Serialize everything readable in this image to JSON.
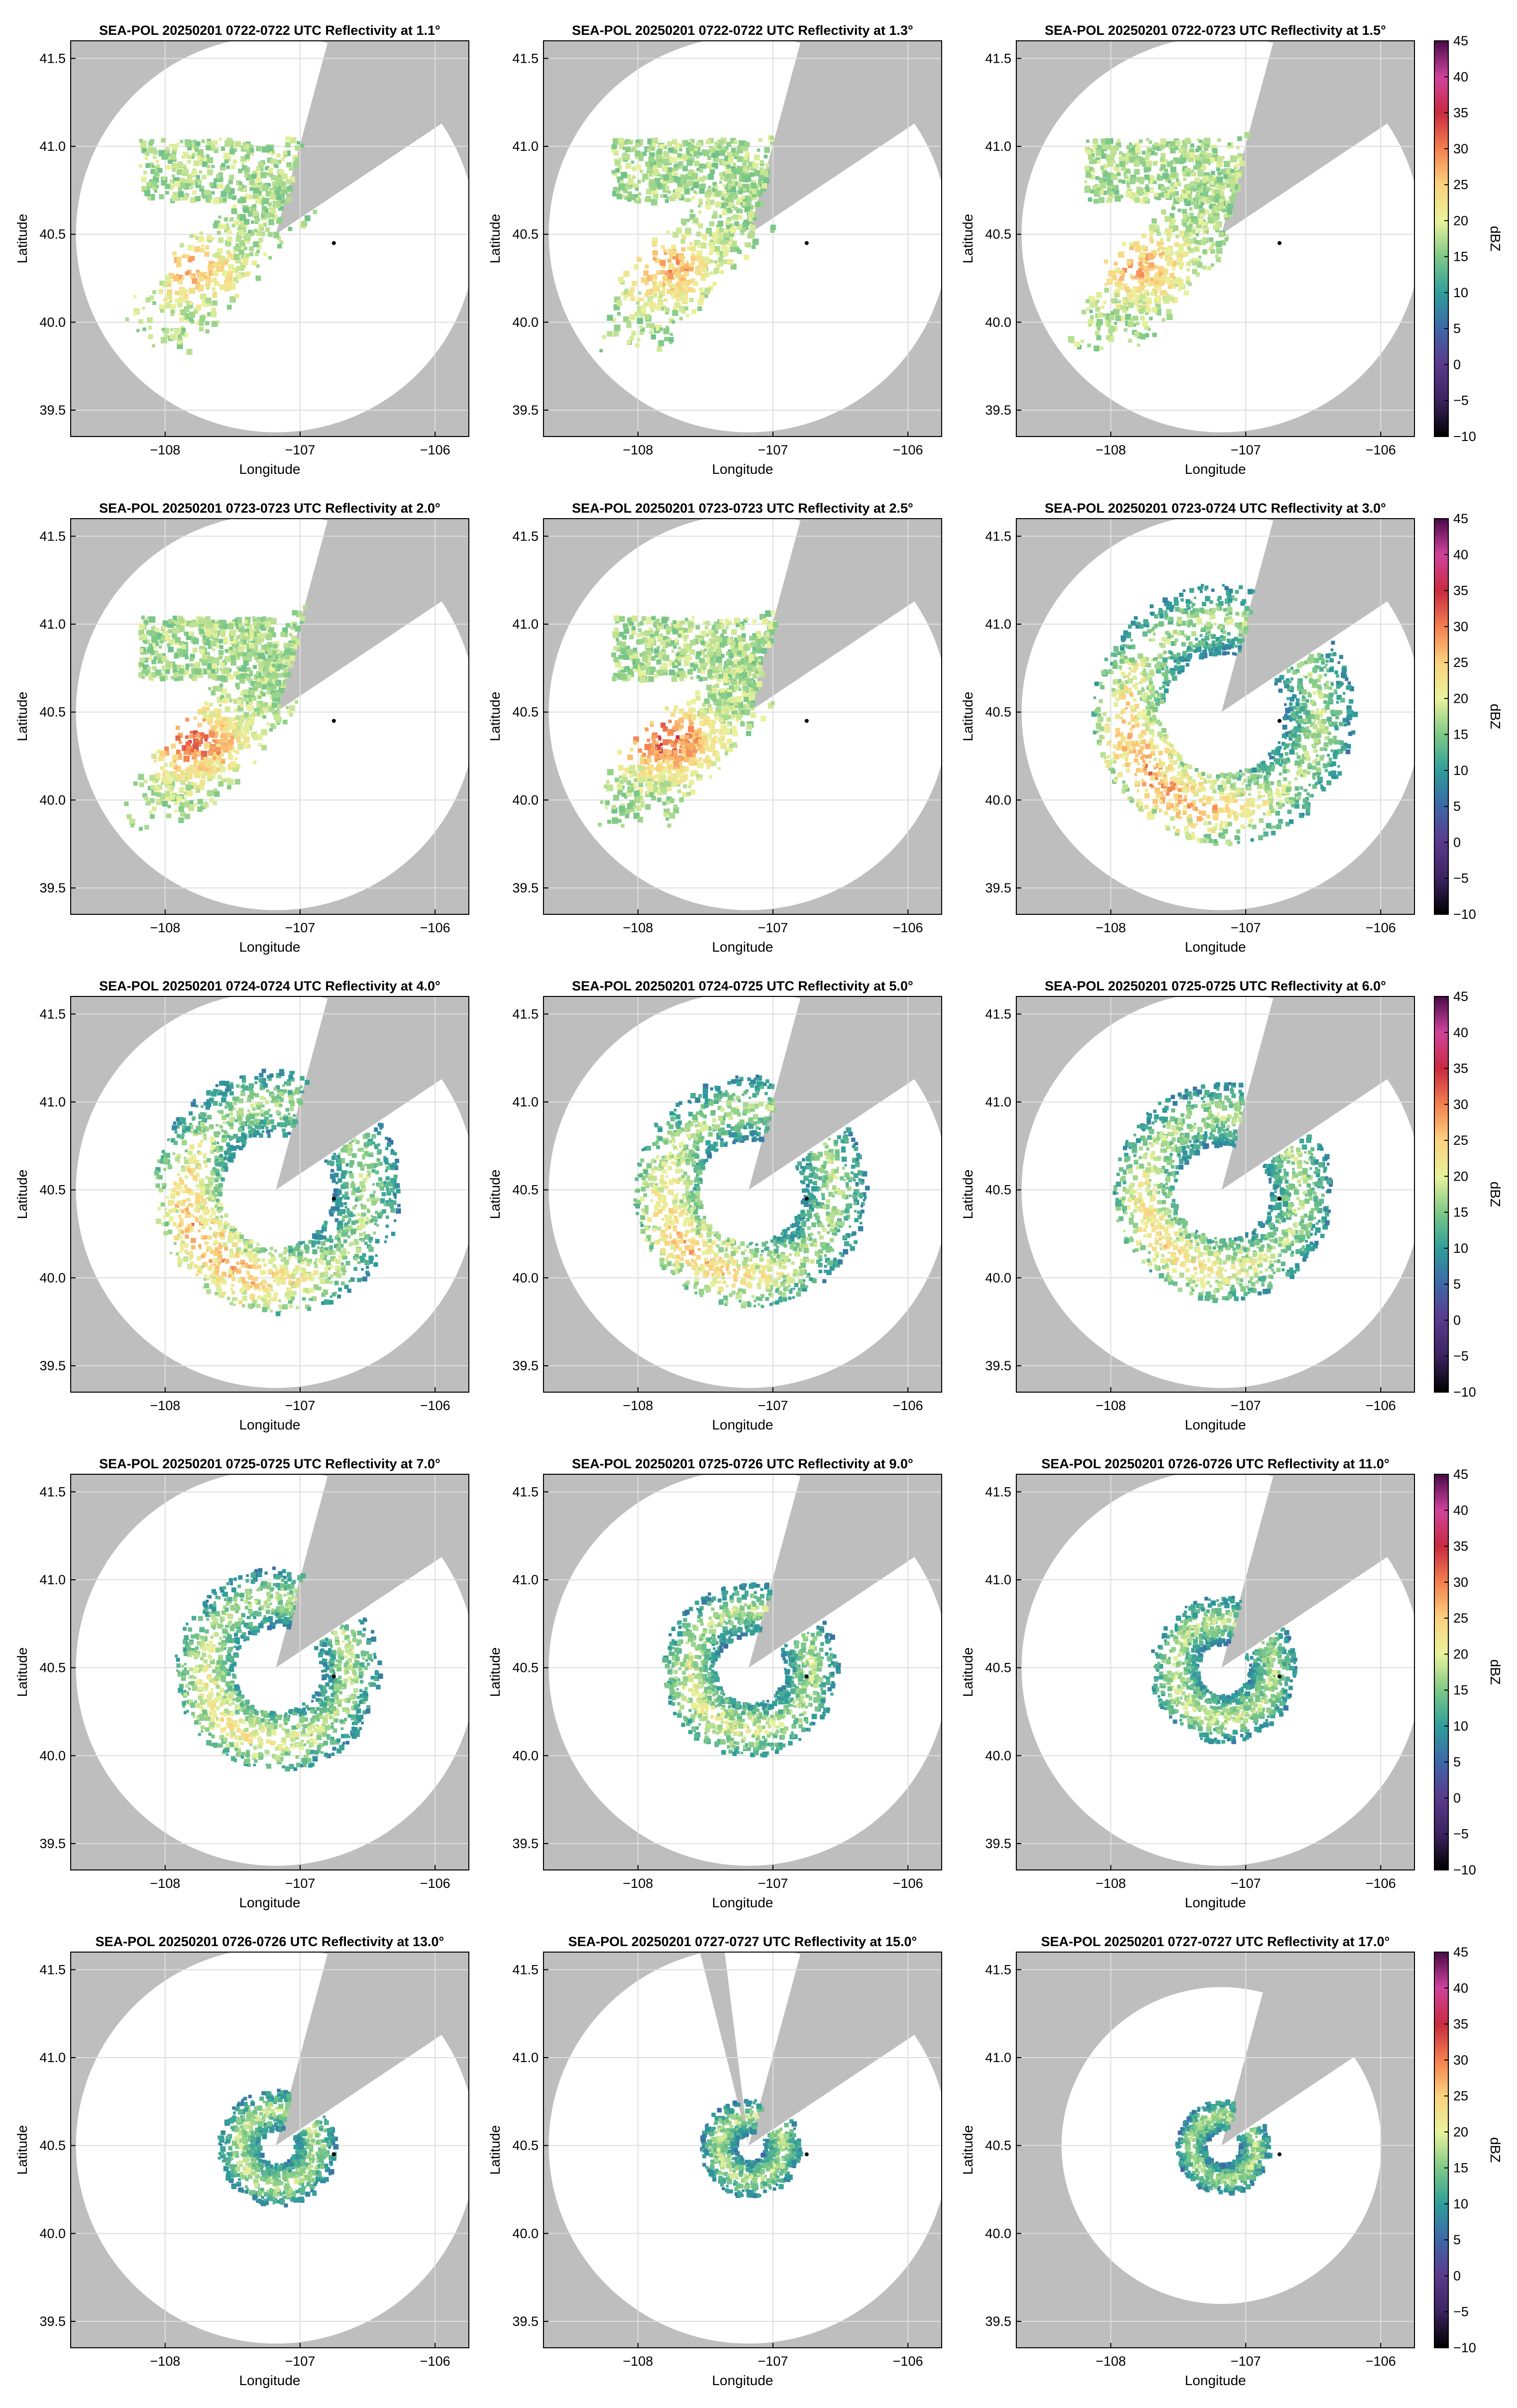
{
  "figure": {
    "background": "#ffffff",
    "mask_color": "#bebebe",
    "grid_color": "#dedede",
    "radar_marker_color": "#000000"
  },
  "chart_data": {
    "type": "heatmap",
    "layout": {
      "rows": 5,
      "cols": 3
    },
    "xlabel": "Longitude",
    "ylabel": "Latitude",
    "xlim": [
      -108.7,
      -105.75
    ],
    "ylim": [
      39.35,
      41.6
    ],
    "xticks": [
      -108,
      -107,
      -106
    ],
    "xtick_labels": [
      "−108",
      "−107",
      "−106"
    ],
    "yticks": [
      39.5,
      40.0,
      40.5,
      41.0,
      41.5
    ],
    "ytick_labels": [
      "39.5",
      "40.0",
      "40.5",
      "41.0",
      "41.5"
    ],
    "grid": true,
    "radar_site": {
      "lon": -107.18,
      "lat": 40.5
    },
    "marker": {
      "lon": -106.75,
      "lat": 40.45
    },
    "colorbar": {
      "label": "dBZ",
      "range": [
        -10,
        45
      ],
      "ticks": [
        -10,
        -5,
        0,
        5,
        10,
        15,
        20,
        25,
        30,
        35,
        40,
        45
      ],
      "tick_labels": [
        "−10",
        "−5",
        "0",
        "5",
        "10",
        "15",
        "20",
        "25",
        "30",
        "35",
        "40",
        "45"
      ],
      "colormap": [
        [
          -10,
          "#000000"
        ],
        [
          -5,
          "#3b2360"
        ],
        [
          0,
          "#5b3a8c"
        ],
        [
          5,
          "#3d67a8"
        ],
        [
          10,
          "#2f9e9a"
        ],
        [
          15,
          "#7fc987"
        ],
        [
          20,
          "#e9f29c"
        ],
        [
          25,
          "#fbd27e"
        ],
        [
          30,
          "#f3804f"
        ],
        [
          35,
          "#c92a3f"
        ],
        [
          40,
          "#d0439c"
        ],
        [
          45,
          "#4a0a4a"
        ]
      ]
    },
    "panels": [
      {
        "title": "SEA-POL 20250201 0722-0722 UTC Reflectivity at 1.1°",
        "elevation_deg": 1.1,
        "max_range_km": 125,
        "beam_blockage_deg": [
          [
            15,
            56
          ]
        ],
        "echo_level": 0.1,
        "core_dbz": 22,
        "colorbar": false
      },
      {
        "title": "SEA-POL 20250201 0722-0722 UTC Reflectivity at 1.3°",
        "elevation_deg": 1.3,
        "max_range_km": 125,
        "beam_blockage_deg": [
          [
            15,
            56
          ]
        ],
        "echo_level": 0.22,
        "core_dbz": 24,
        "colorbar": false
      },
      {
        "title": "SEA-POL 20250201 0722-0723 UTC Reflectivity at 1.5°",
        "elevation_deg": 1.5,
        "max_range_km": 125,
        "beam_blockage_deg": [
          [
            15,
            56
          ]
        ],
        "echo_level": 0.3,
        "core_dbz": 24,
        "colorbar": true
      },
      {
        "title": "SEA-POL 20250201 0723-0723 UTC Reflectivity at 2.0°",
        "elevation_deg": 2.0,
        "max_range_km": 125,
        "beam_blockage_deg": [
          [
            15,
            56
          ]
        ],
        "echo_level": 0.4,
        "core_dbz": 28,
        "colorbar": false
      },
      {
        "title": "SEA-POL 20250201 0723-0723 UTC Reflectivity at 2.5°",
        "elevation_deg": 2.5,
        "max_range_km": 125,
        "beam_blockage_deg": [
          [
            15,
            56
          ]
        ],
        "echo_level": 0.45,
        "core_dbz": 29,
        "colorbar": false
      },
      {
        "title": "SEA-POL 20250201 0723-0724 UTC Reflectivity at 3.0°",
        "elevation_deg": 3.0,
        "max_range_km": 125,
        "beam_blockage_deg": [
          [
            15,
            56
          ]
        ],
        "echo_level": 0.5,
        "core_dbz": 29,
        "colorbar": true
      },
      {
        "title": "SEA-POL 20250201 0724-0724 UTC Reflectivity at 4.0°",
        "elevation_deg": 4.0,
        "max_range_km": 125,
        "beam_blockage_deg": [
          [
            15,
            56
          ]
        ],
        "echo_level": 0.55,
        "core_dbz": 28,
        "colorbar": false
      },
      {
        "title": "SEA-POL 20250201 0724-0725 UTC Reflectivity at 5.0°",
        "elevation_deg": 5.0,
        "max_range_km": 125,
        "beam_blockage_deg": [
          [
            15,
            56
          ]
        ],
        "echo_level": 0.55,
        "core_dbz": 26,
        "colorbar": false
      },
      {
        "title": "SEA-POL 20250201 0725-0725 UTC Reflectivity at 6.0°",
        "elevation_deg": 6.0,
        "max_range_km": 125,
        "beam_blockage_deg": [
          [
            15,
            56
          ]
        ],
        "echo_level": 0.55,
        "core_dbz": 24,
        "colorbar": true
      },
      {
        "title": "SEA-POL 20250201 0725-0725 UTC Reflectivity at 7.0°",
        "elevation_deg": 7.0,
        "max_range_km": 125,
        "beam_blockage_deg": [
          [
            15,
            56
          ]
        ],
        "echo_level": 0.55,
        "core_dbz": 22,
        "colorbar": false
      },
      {
        "title": "SEA-POL 20250201 0725-0726 UTC Reflectivity at 9.0°",
        "elevation_deg": 9.0,
        "max_range_km": 125,
        "beam_blockage_deg": [
          [
            15,
            56
          ]
        ],
        "echo_level": 0.55,
        "core_dbz": 20,
        "colorbar": false
      },
      {
        "title": "SEA-POL 20250201 0726-0726 UTC Reflectivity at 11.0°",
        "elevation_deg": 11.0,
        "max_range_km": 125,
        "beam_blockage_deg": [
          [
            15,
            56
          ]
        ],
        "echo_level": 0.55,
        "core_dbz": 18,
        "colorbar": true
      },
      {
        "title": "SEA-POL 20250201 0726-0726 UTC Reflectivity at 13.0°",
        "elevation_deg": 13.0,
        "max_range_km": 125,
        "beam_blockage_deg": [
          [
            15,
            56
          ]
        ],
        "echo_level": 0.55,
        "core_dbz": 17,
        "colorbar": false
      },
      {
        "title": "SEA-POL 20250201 0727-0727 UTC Reflectivity at 15.0°",
        "elevation_deg": 15.0,
        "max_range_km": 125,
        "beam_blockage_deg": [
          [
            -14,
            -7
          ],
          [
            15,
            56
          ]
        ],
        "echo_level": 0.55,
        "core_dbz": 16,
        "colorbar": false
      },
      {
        "title": "SEA-POL 20250201 0727-0727 UTC Reflectivity at 17.0°",
        "elevation_deg": 17.0,
        "max_range_km": 100,
        "beam_blockage_deg": [
          [
            15,
            56
          ]
        ],
        "echo_level": 0.55,
        "core_dbz": 15,
        "colorbar": true
      }
    ]
  }
}
